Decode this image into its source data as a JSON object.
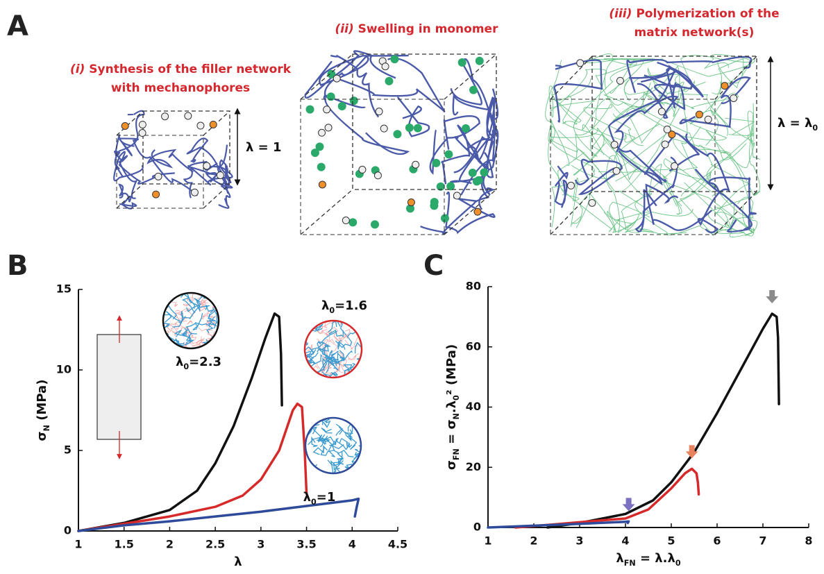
{
  "panel_a": {
    "letter": "A",
    "steps": [
      {
        "number": "(i)",
        "lines": [
          "Synthesis of the filler network",
          "with mechanophores"
        ]
      },
      {
        "number": "(ii)",
        "lines": [
          "Swelling in monomer"
        ]
      },
      {
        "number": "(iii)",
        "lines": [
          "Polymerization of the",
          "matrix network(s)"
        ]
      }
    ],
    "stretch_labels": [
      [
        "λ = 1"
      ],
      [
        "λ = λ",
        "0"
      ]
    ]
  },
  "chart_data": [
    {
      "type": "line",
      "letter": "B",
      "xlabel": [
        "λ"
      ],
      "ylabel": [
        "σ",
        "N",
        " (MPa)"
      ],
      "xlim": [
        1,
        4.5
      ],
      "xticks": [
        1,
        1.5,
        2,
        2.5,
        3,
        3.5,
        4,
        4.5
      ],
      "ylim": [
        0,
        15
      ],
      "yticks": [
        0,
        5,
        10,
        15
      ],
      "series": [
        {
          "color": "#111111",
          "x": [
            1,
            1.5,
            2,
            2.3,
            2.5,
            2.7,
            2.9,
            3.05,
            3.15,
            3.2,
            3.22,
            3.23
          ],
          "values": [
            0,
            0.5,
            1.3,
            2.5,
            4.2,
            6.5,
            9.5,
            12,
            13.5,
            13.3,
            11,
            7.8
          ]
        },
        {
          "color": "#d62a2a",
          "x": [
            1,
            1.5,
            2,
            2.5,
            2.8,
            3,
            3.2,
            3.35,
            3.4,
            3.45,
            3.48,
            3.5
          ],
          "values": [
            0,
            0.45,
            0.9,
            1.5,
            2.2,
            3.2,
            5,
            7.5,
            7.9,
            7.7,
            5,
            2.3
          ]
        },
        {
          "color": "#2e4a9a",
          "x": [
            1,
            1.5,
            2,
            2.5,
            3,
            3.5,
            4,
            4.07,
            4.05,
            4.03
          ],
          "values": [
            0,
            0.35,
            0.6,
            0.9,
            1.2,
            1.55,
            1.9,
            2.0,
            1.5,
            0.9
          ]
        }
      ],
      "annotations": [
        {
          "text": [
            "λ",
            "0",
            "=2.3"
          ],
          "color": "#111111"
        },
        {
          "text": [
            "λ",
            "0",
            "=1.6"
          ],
          "color": "#d62a2a"
        },
        {
          "text": [
            "λ",
            "0",
            "=1"
          ],
          "color": "#2e4a9a"
        }
      ]
    },
    {
      "type": "line",
      "letter": "C",
      "xlabel": [
        "λ",
        "FN",
        " = λ.λ",
        "0"
      ],
      "ylabel": [
        "σ",
        "FN",
        " = σ",
        "N",
        ".λ",
        "0",
        "² (MPa)"
      ],
      "xlim": [
        1,
        8
      ],
      "xticks": [
        1,
        2,
        3,
        4,
        5,
        6,
        7,
        8
      ],
      "ylim": [
        0,
        80
      ],
      "yticks": [
        0,
        20,
        40,
        60,
        80
      ],
      "series": [
        {
          "color": "#111111",
          "marker_color": "#8a8a8a",
          "x": [
            2.3,
            3,
            4,
            4.6,
            5,
            5.5,
            6,
            6.5,
            7,
            7.2,
            7.3,
            7.33,
            7.35
          ],
          "values": [
            0,
            1.5,
            4.5,
            9,
            15,
            25,
            38,
            52,
            66,
            71,
            70,
            63,
            41
          ]
        },
        {
          "color": "#d62a2a",
          "marker_color": "#e8835f",
          "x": [
            1.6,
            2.4,
            3.2,
            4,
            4.5,
            5,
            5.3,
            5.45,
            5.55,
            5.58,
            5.6
          ],
          "values": [
            0,
            1,
            2,
            3,
            6,
            13,
            18,
            19.5,
            18,
            15,
            11
          ]
        },
        {
          "color": "#2e4a9a",
          "marker_color": "#7a72c0",
          "x": [
            1,
            2,
            3,
            4,
            4.07,
            4.05
          ],
          "values": [
            0,
            0.6,
            1.2,
            1.9,
            2,
            1.5
          ]
        }
      ]
    }
  ]
}
